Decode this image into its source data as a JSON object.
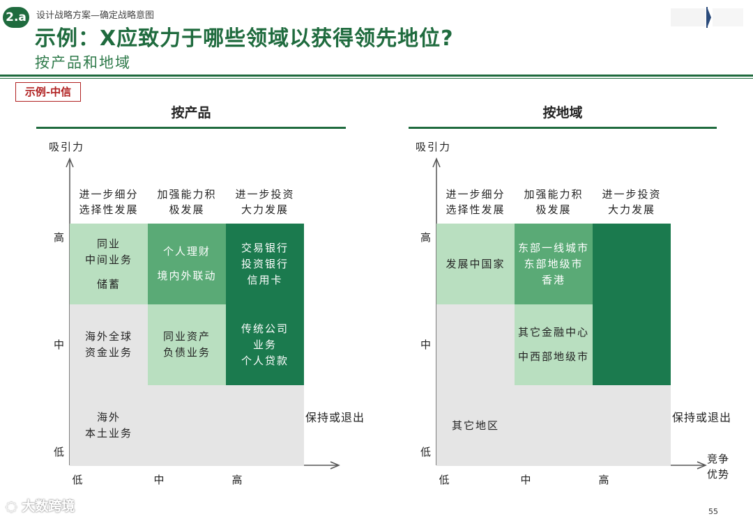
{
  "header": {
    "badge": "2.a",
    "breadcrumb": "设计战略方案—确定战略意图",
    "title": "示例：X应致力于哪些领域以获得领先地位?",
    "subtitle": "按产品和地域",
    "example_tag": "示例-中信"
  },
  "colors": {
    "brand": "#1f6b3e",
    "grey": "#e5e5e5",
    "light": "#b9dfc0",
    "mid": "#5aaa76",
    "dark": "#1b7a4e",
    "tag_red": "#b02020"
  },
  "panels": {
    "product": {
      "title": "按产品",
      "y_axis": "吸引力",
      "columns": [
        "进一步细分\n选择性发展",
        "加强能力积\n极发展",
        "进一步投资\n大力发展"
      ],
      "rows": [
        "高",
        "中",
        "低"
      ],
      "x_ticks": [
        "低",
        "中",
        "高"
      ],
      "exit_label": "保持或退出",
      "cells": [
        {
          "tone": "light",
          "lines": [
            "同业",
            "中间业务",
            "",
            "储蓄"
          ]
        },
        {
          "tone": "mid",
          "lines": [
            "个人理财",
            "",
            "境内外联动"
          ]
        },
        {
          "tone": "dark",
          "lines": [
            "交易银行",
            "投资银行",
            "信用卡"
          ]
        },
        {
          "tone": "grey",
          "lines": [
            "海外全球",
            "资金业务"
          ]
        },
        {
          "tone": "light",
          "lines": [
            "同业资产",
            "负债业务"
          ]
        },
        {
          "tone": "dark",
          "lines": [
            "传统公司",
            "业务",
            "个人贷款"
          ]
        },
        {
          "tone": "grey",
          "lines": [
            "海外",
            "本土业务"
          ]
        },
        {
          "tone": "grey",
          "lines": []
        },
        {
          "tone": "grey",
          "lines": []
        }
      ]
    },
    "region": {
      "title": "按地域",
      "y_axis": "吸引力",
      "x_axis": "竞争\n优势",
      "columns": [
        "进一步细分\n选择性发展",
        "加强能力积\n极发展",
        "进一步投资\n大力发展"
      ],
      "rows": [
        "高",
        "中",
        "低"
      ],
      "x_ticks": [
        "低",
        "中",
        "高"
      ],
      "exit_label": "保持或退出",
      "cells": [
        {
          "tone": "light",
          "lines": [
            "发展中国家"
          ]
        },
        {
          "tone": "mid",
          "lines": [
            "东部一线城市",
            "东部地级市",
            "香港"
          ]
        },
        {
          "tone": "dark",
          "lines": []
        },
        {
          "tone": "grey",
          "lines": []
        },
        {
          "tone": "light",
          "lines": [
            "其它金融中心",
            "",
            "中西部地级市"
          ]
        },
        {
          "tone": "dark",
          "lines": []
        },
        {
          "tone": "grey",
          "lines": [
            "其它地区"
          ]
        },
        {
          "tone": "grey",
          "lines": []
        },
        {
          "tone": "grey",
          "lines": []
        }
      ]
    }
  },
  "footer": {
    "page_number": "55",
    "watermark": "大数跨境"
  }
}
